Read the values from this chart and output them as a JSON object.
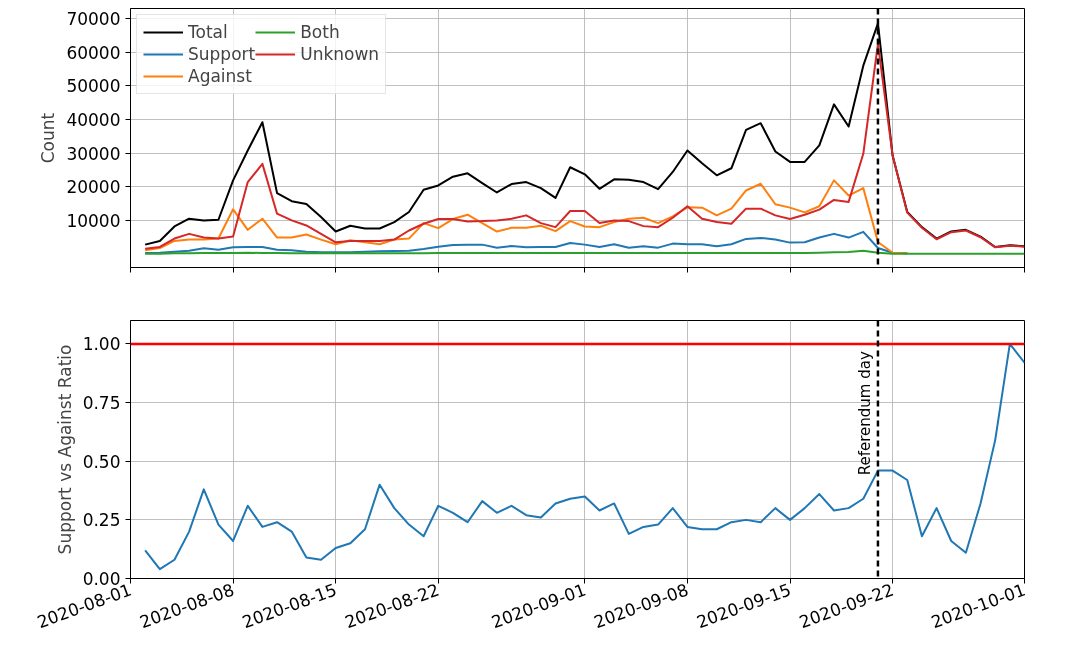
{
  "chart_data": [
    {
      "type": "line",
      "ylabel": "Count",
      "x": [
        "2020-08-02",
        "2020-08-03",
        "2020-08-04",
        "2020-08-05",
        "2020-08-06",
        "2020-08-07",
        "2020-08-08",
        "2020-08-09",
        "2020-08-10",
        "2020-08-11",
        "2020-08-12",
        "2020-08-13",
        "2020-08-14",
        "2020-08-15",
        "2020-08-16",
        "2020-08-17",
        "2020-08-18",
        "2020-08-19",
        "2020-08-20",
        "2020-08-21",
        "2020-08-22",
        "2020-08-23",
        "2020-08-24",
        "2020-08-25",
        "2020-08-26",
        "2020-08-27",
        "2020-08-28",
        "2020-08-29",
        "2020-08-30",
        "2020-08-31",
        "2020-09-01",
        "2020-09-02",
        "2020-09-03",
        "2020-09-04",
        "2020-09-05",
        "2020-09-06",
        "2020-09-07",
        "2020-09-08",
        "2020-09-09",
        "2020-09-10",
        "2020-09-11",
        "2020-09-12",
        "2020-09-13",
        "2020-09-14",
        "2020-09-15",
        "2020-09-16",
        "2020-09-17",
        "2020-09-18",
        "2020-09-19",
        "2020-09-20",
        "2020-09-21",
        "2020-09-22",
        "2020-09-23",
        "2020-09-24",
        "2020-09-25",
        "2020-09-26",
        "2020-09-27",
        "2020-09-28",
        "2020-09-29",
        "2020-09-30",
        "2020-10-01"
      ],
      "series": [
        {
          "name": "Total",
          "color": "#000000",
          "values": [
            2800,
            3900,
            8200,
            10500,
            10000,
            10200,
            21900,
            30800,
            39200,
            18100,
            15700,
            14900,
            11000,
            6700,
            8400,
            7600,
            7600,
            9500,
            12500,
            19100,
            20400,
            23000,
            24000,
            21100,
            18300,
            20800,
            21400,
            19600,
            16700,
            25800,
            23700,
            19400,
            22200,
            22100,
            21400,
            19300,
            24400,
            30800,
            27000,
            23400,
            25500,
            36900,
            38900,
            30500,
            27400,
            27400,
            32300,
            44500,
            37900,
            56000,
            68600,
            29300,
            12500,
            8000,
            4600,
            6700,
            7200,
            5200,
            2100,
            2600,
            2300
          ]
        },
        {
          "name": "Support",
          "color": "#1f77b4",
          "values": [
            300,
            400,
            700,
            1000,
            1700,
            1300,
            2000,
            2100,
            2100,
            1300,
            1100,
            700,
            500,
            500,
            500,
            700,
            800,
            900,
            1000,
            1500,
            2200,
            2700,
            2800,
            2800,
            1900,
            2400,
            2000,
            2100,
            2100,
            3300,
            2800,
            2100,
            2900,
            1900,
            2300,
            1900,
            3100,
            2900,
            2900,
            2300,
            2900,
            4500,
            4800,
            4300,
            3400,
            3500,
            4900,
            6000,
            4900,
            6600,
            1800,
            400,
            200,
            null,
            null,
            null,
            null,
            null,
            null,
            null,
            null
          ]
        },
        {
          "name": "Against",
          "color": "#ff7f0e",
          "values": [
            1100,
            1800,
            3900,
            4300,
            4300,
            4600,
            13300,
            7200,
            10500,
            4900,
            4900,
            5800,
            4300,
            2900,
            4100,
            3500,
            2900,
            4300,
            4600,
            9200,
            7700,
            10400,
            11700,
            9200,
            6700,
            7800,
            7800,
            8400,
            6800,
            9800,
            8200,
            8000,
            9500,
            10500,
            10800,
            9200,
            11200,
            13900,
            13800,
            11500,
            13500,
            18900,
            20900,
            14800,
            13800,
            12400,
            14200,
            21900,
            17400,
            19600,
            3600,
            400,
            200,
            null,
            null,
            null,
            null,
            null,
            null,
            null,
            null
          ]
        },
        {
          "name": "Both",
          "color": "#2ca02c",
          "values": [
            100,
            100,
            200,
            200,
            300,
            300,
            300,
            400,
            300,
            300,
            200,
            200,
            200,
            200,
            200,
            200,
            200,
            200,
            200,
            200,
            300,
            300,
            300,
            300,
            300,
            300,
            300,
            300,
            300,
            300,
            300,
            300,
            300,
            300,
            300,
            300,
            300,
            300,
            300,
            300,
            300,
            300,
            300,
            300,
            300,
            300,
            400,
            500,
            600,
            1000,
            400,
            100,
            100,
            100,
            100,
            100,
            100,
            100,
            100,
            100,
            100
          ]
        },
        {
          "name": "Unknown",
          "color": "#d62728",
          "values": [
            1600,
            2100,
            4600,
            6000,
            4900,
            4600,
            5200,
            21400,
            26800,
            12000,
            10000,
            8500,
            6000,
            3500,
            3900,
            3900,
            3900,
            4300,
            7000,
            9000,
            10400,
            10400,
            9700,
            9800,
            10000,
            10500,
            11500,
            9200,
            8000,
            12800,
            12800,
            9200,
            10000,
            9800,
            8300,
            8000,
            10800,
            14200,
            10500,
            9500,
            9000,
            13500,
            13500,
            11500,
            10400,
            11700,
            13200,
            16100,
            15500,
            29800,
            62500,
            29300,
            12300,
            7800,
            4400,
            6500,
            7000,
            5000,
            2000,
            2500,
            2200
          ]
        }
      ],
      "xlim": [
        "2020-08-01",
        "2020-10-01"
      ],
      "xticks": [
        "2020-08-01",
        "2020-08-08",
        "2020-08-15",
        "2020-08-22",
        "2020-09-01",
        "2020-09-08",
        "2020-09-15",
        "2020-09-22",
        "2020-10-01"
      ],
      "ylim": [
        -4000,
        73000
      ],
      "yticks": [
        10000,
        20000,
        30000,
        40000,
        50000,
        60000,
        70000
      ],
      "tick_labels": "y",
      "ref_lines": [
        {
          "axis": "x",
          "value": "2020-09-21",
          "color": "#000000",
          "line_style": "dashed"
        }
      ],
      "legend": "top left",
      "grid": true
    },
    {
      "type": "line",
      "ylabel": "Support vs Against Ratio",
      "x": [
        "2020-08-02",
        "2020-08-03",
        "2020-08-04",
        "2020-08-05",
        "2020-08-06",
        "2020-08-07",
        "2020-08-08",
        "2020-08-09",
        "2020-08-10",
        "2020-08-11",
        "2020-08-12",
        "2020-08-13",
        "2020-08-14",
        "2020-08-15",
        "2020-08-16",
        "2020-08-17",
        "2020-08-18",
        "2020-08-19",
        "2020-08-20",
        "2020-08-21",
        "2020-08-22",
        "2020-08-23",
        "2020-08-24",
        "2020-08-25",
        "2020-08-26",
        "2020-08-27",
        "2020-08-28",
        "2020-08-29",
        "2020-08-30",
        "2020-08-31",
        "2020-09-01",
        "2020-09-02",
        "2020-09-03",
        "2020-09-04",
        "2020-09-05",
        "2020-09-06",
        "2020-09-07",
        "2020-09-08",
        "2020-09-09",
        "2020-09-10",
        "2020-09-11",
        "2020-09-12",
        "2020-09-13",
        "2020-09-14",
        "2020-09-15",
        "2020-09-16",
        "2020-09-17",
        "2020-09-18",
        "2020-09-19",
        "2020-09-20",
        "2020-09-21",
        "2020-09-22",
        "2020-09-23",
        "2020-09-24",
        "2020-09-25",
        "2020-09-26",
        "2020-09-27",
        "2020-09-28",
        "2020-09-29",
        "2020-09-30",
        "2020-10-01"
      ],
      "series": [
        {
          "color": "#1f77b4",
          "values": [
            0.12,
            0.04,
            0.08,
            0.2,
            0.38,
            0.23,
            0.16,
            0.31,
            0.22,
            0.24,
            0.2,
            0.09,
            0.08,
            0.13,
            0.15,
            0.21,
            0.4,
            0.3,
            0.23,
            0.18,
            0.31,
            0.28,
            0.24,
            0.33,
            0.28,
            0.31,
            0.27,
            0.26,
            0.32,
            0.34,
            0.35,
            0.29,
            0.32,
            0.19,
            0.22,
            0.23,
            0.3,
            0.22,
            0.21,
            0.21,
            0.24,
            0.25,
            0.24,
            0.3,
            0.25,
            0.3,
            0.36,
            0.29,
            0.3,
            0.34,
            0.46,
            0.46,
            0.42,
            0.18,
            0.3,
            0.16,
            0.11,
            0.32,
            0.59,
            1.0,
            0.92
          ]
        }
      ],
      "xlim": [
        "2020-08-01",
        "2020-10-01"
      ],
      "xticks": [
        "2020-08-01",
        "2020-08-08",
        "2020-08-15",
        "2020-08-22",
        "2020-09-01",
        "2020-09-08",
        "2020-09-15",
        "2020-09-22",
        "2020-10-01"
      ],
      "ylim": [
        0,
        1.1
      ],
      "yticks": [
        {
          "value": 0,
          "label": "0.00"
        },
        {
          "value": 0.25,
          "label": "0.25"
        },
        {
          "value": 0.5,
          "label": "0.50"
        },
        {
          "value": 0.75,
          "label": "0.75"
        },
        {
          "value": 1,
          "label": "1.00"
        }
      ],
      "ref_lines": [
        {
          "axis": "y",
          "value": 1,
          "color": "#ff0000",
          "line_style": "solid"
        },
        {
          "axis": "x",
          "value": "2020-09-21",
          "label": "Referendum day",
          "color": "#000000",
          "line_style": "dashed"
        }
      ],
      "grid": true
    }
  ]
}
